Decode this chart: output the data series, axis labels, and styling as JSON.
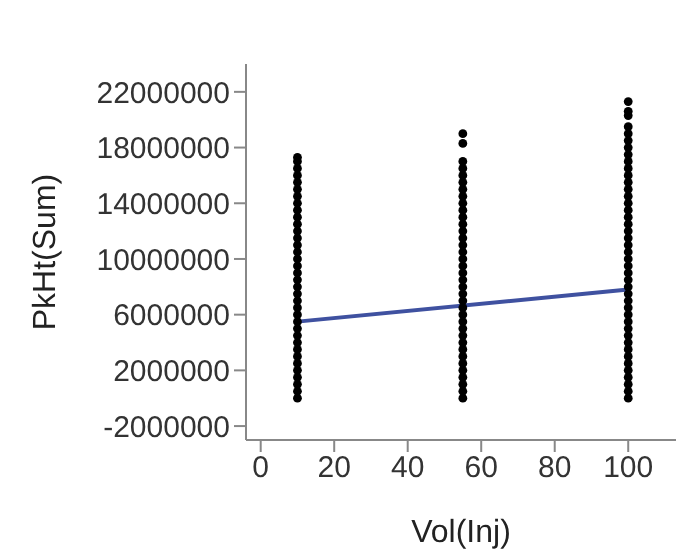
{
  "chart_data": {
    "type": "scatter",
    "xlabel": "Vol(Inj)",
    "ylabel": "PkHt(Sum)",
    "xlim": [
      -4,
      113
    ],
    "xticks": [
      0,
      20,
      40,
      60,
      80,
      100
    ],
    "ylim": [
      -3000000,
      24000000
    ],
    "yticks": [
      -2000000,
      2000000,
      6000000,
      10000000,
      14000000,
      18000000,
      22000000
    ],
    "grid": false,
    "legend": false,
    "series": [
      {
        "marker": "circle",
        "color": "#000000",
        "x": [
          10,
          10,
          10,
          10,
          10,
          10,
          10,
          10,
          10,
          10,
          10,
          10,
          10,
          10,
          10,
          10,
          10,
          10,
          10,
          10,
          10,
          10,
          10,
          10,
          10,
          10,
          10,
          10,
          10,
          10,
          10,
          10,
          10,
          10,
          10,
          10,
          55,
          55,
          55,
          55,
          55,
          55,
          55,
          55,
          55,
          55,
          55,
          55,
          55,
          55,
          55,
          55,
          55,
          55,
          55,
          55,
          55,
          55,
          55,
          55,
          55,
          55,
          55,
          55,
          55,
          55,
          55,
          55,
          55,
          55,
          55,
          55,
          55,
          100,
          100,
          100,
          100,
          100,
          100,
          100,
          100,
          100,
          100,
          100,
          100,
          100,
          100,
          100,
          100,
          100,
          100,
          100,
          100,
          100,
          100,
          100,
          100,
          100,
          100,
          100,
          100,
          100,
          100,
          100,
          100,
          100,
          100,
          100,
          100,
          100,
          100,
          100,
          100,
          100,
          100,
          100
        ],
        "values": [
          0,
          500000,
          1000000,
          1500000,
          2000000,
          2500000,
          3000000,
          3500000,
          4000000,
          4500000,
          5000000,
          5500000,
          6000000,
          6500000,
          7000000,
          7500000,
          8000000,
          8500000,
          9000000,
          9500000,
          10000000,
          10500000,
          11000000,
          11500000,
          12000000,
          12500000,
          13000000,
          13500000,
          14000000,
          14500000,
          15000000,
          15500000,
          16000000,
          16500000,
          17000000,
          17300000,
          0,
          500000,
          1000000,
          1500000,
          2000000,
          2500000,
          3000000,
          3500000,
          4000000,
          4500000,
          5000000,
          5500000,
          6000000,
          6500000,
          7000000,
          7500000,
          8000000,
          8500000,
          9000000,
          9500000,
          10000000,
          10500000,
          11000000,
          11500000,
          12000000,
          12500000,
          13000000,
          13500000,
          14000000,
          14500000,
          15000000,
          15500000,
          16000000,
          16500000,
          17000000,
          18300000,
          19000000,
          0,
          500000,
          1000000,
          1500000,
          2000000,
          2500000,
          3000000,
          3500000,
          4000000,
          4500000,
          5000000,
          5500000,
          6000000,
          6500000,
          7000000,
          7500000,
          8000000,
          8500000,
          9000000,
          9500000,
          10000000,
          10500000,
          11000000,
          11500000,
          12000000,
          12500000,
          13000000,
          13500000,
          14000000,
          14500000,
          15000000,
          15500000,
          16000000,
          16500000,
          17000000,
          17500000,
          18000000,
          18500000,
          19000000,
          19500000,
          20300000,
          20600000,
          21300000
        ]
      },
      {
        "type": "line",
        "marker": "none",
        "color": "#3f51a0",
        "x": [
          10,
          100
        ],
        "values": [
          5500000,
          7800000
        ]
      }
    ]
  }
}
